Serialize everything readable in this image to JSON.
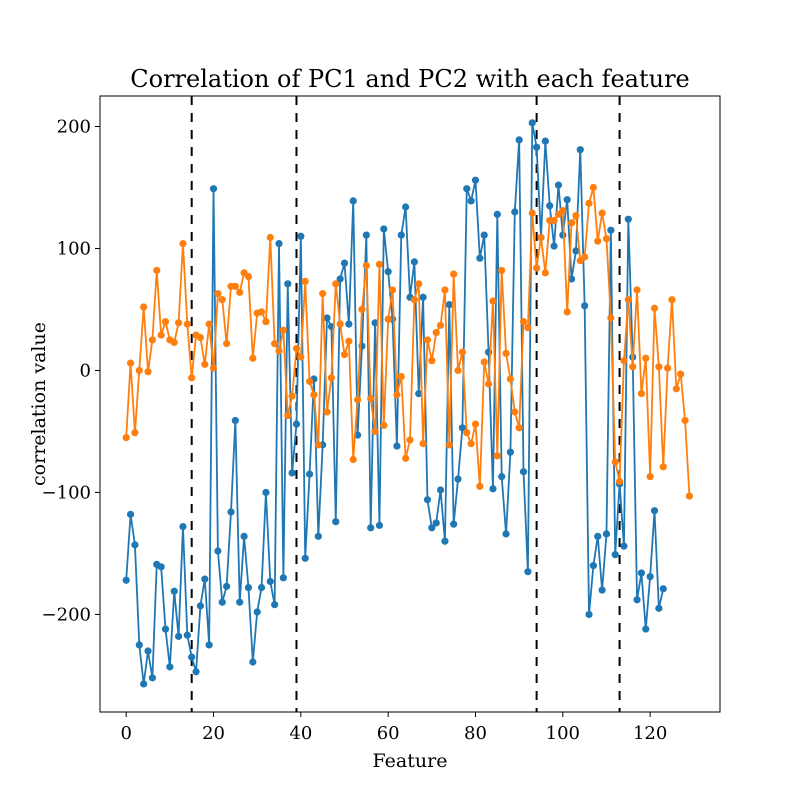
{
  "chart_data": {
    "type": "line",
    "title": "Correlation of PC1 and PC2 with each feature",
    "xlabel": "Feature",
    "ylabel": "correlation value",
    "xlim": [
      -6,
      136
    ],
    "ylim": [
      -280,
      225
    ],
    "xticks": [
      0,
      20,
      40,
      60,
      80,
      100,
      120
    ],
    "yticks": [
      -200,
      -100,
      0,
      100,
      200
    ],
    "xtick_labels": [
      "0",
      "20",
      "40",
      "60",
      "80",
      "100",
      "120"
    ],
    "ytick_labels": [
      "−200",
      "−100",
      "0",
      "100",
      "200"
    ],
    "grid": false,
    "legend": "none",
    "vlines": [
      15,
      39,
      94,
      113
    ],
    "series": [
      {
        "color": "#1f77b4",
        "values": [
          -172,
          -118,
          -143,
          -225,
          -257,
          -230,
          -252,
          -159,
          -161,
          -212,
          -243,
          -181,
          -218,
          -128,
          -217,
          -235,
          -247,
          -193,
          -171,
          -225,
          149,
          -148,
          -190,
          -177,
          -116,
          -41,
          -190,
          -136,
          -178,
          -239,
          -198,
          -178,
          -100,
          -173,
          -192,
          104,
          -170,
          71,
          -84,
          -44,
          110,
          -154,
          -85,
          -7,
          -136,
          -61,
          43,
          36,
          -124,
          75,
          88,
          38,
          139,
          -53,
          20,
          111,
          -129,
          39,
          -127,
          116,
          81,
          42,
          -62,
          111,
          134,
          60,
          89,
          -19,
          60,
          -106,
          -129,
          -125,
          -98,
          -140,
          54,
          -126,
          -89,
          -47,
          149,
          139,
          156,
          92,
          111,
          15,
          -97,
          128,
          -87,
          -134,
          -67,
          130,
          189,
          -83,
          -165,
          203,
          183,
          109,
          188,
          135,
          102,
          152,
          111,
          140,
          75,
          98,
          181,
          53,
          -200,
          -160,
          -136,
          -180,
          -134,
          115,
          -151,
          -93,
          -144,
          124,
          11,
          -188,
          -166,
          -212,
          -169,
          -115,
          -195,
          -179
        ],
        "x_start": 0,
        "x_step": 1
      },
      {
        "color": "#ff7f0e",
        "values": [
          -55,
          6,
          -51,
          0,
          52,
          -1,
          25,
          82,
          29,
          40,
          25,
          23,
          39,
          104,
          38,
          -6,
          29,
          27,
          5,
          38,
          2,
          63,
          58,
          22,
          69,
          69,
          64,
          80,
          77,
          10,
          47,
          48,
          40,
          109,
          22,
          16,
          33,
          -37,
          -21,
          18,
          11,
          73,
          -9,
          -20,
          -61,
          63,
          -34,
          -6,
          71,
          38,
          13,
          24,
          -73,
          -24,
          50,
          86,
          -23,
          -50,
          87,
          -45,
          42,
          66,
          -20,
          -5,
          -72,
          -57,
          58,
          71,
          -60,
          25,
          8,
          31,
          37,
          66,
          -61,
          79,
          0,
          15,
          -51,
          -60,
          -44,
          -95,
          7,
          -11,
          57,
          -70,
          82,
          14,
          -7,
          -34,
          -47,
          40,
          35,
          129,
          84,
          109,
          80,
          123,
          123,
          128,
          131,
          48,
          121,
          127,
          90,
          93,
          137,
          150,
          106,
          129,
          108,
          43,
          -75,
          -91,
          8,
          58,
          3,
          66,
          -19,
          10,
          -87,
          51,
          3,
          -79,
          2,
          58,
          -15,
          -3,
          -41,
          -103
        ],
        "x_start": 0,
        "x_step": 1
      }
    ]
  }
}
